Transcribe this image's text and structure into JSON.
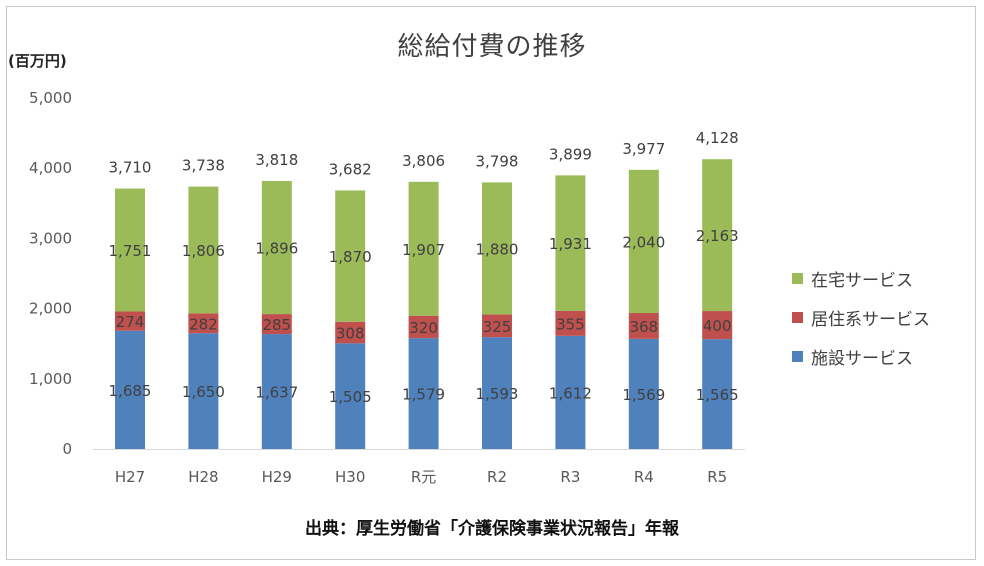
{
  "chart_data": {
    "type": "bar",
    "stacked": true,
    "title": "総給付費の推移",
    "ylabel": "(百万円)",
    "source": "出典：厚生労働省「介護保険事業状況報告」年報",
    "categories": [
      "H27",
      "H28",
      "H29",
      "H30",
      "R元",
      "R2",
      "R3",
      "R4",
      "R5"
    ],
    "yticks": [
      "0",
      "1,000",
      "2,000",
      "3,000",
      "4,000",
      "5,000"
    ],
    "ylim": [
      0,
      5000
    ],
    "grid": false,
    "legend_position": "right",
    "series": [
      {
        "name": "施設サービス",
        "color": "#4F81BD",
        "values": [
          1685,
          1650,
          1637,
          1505,
          1579,
          1593,
          1612,
          1569,
          1565
        ],
        "labels": [
          "1,685",
          "1,650",
          "1,637",
          "1,505",
          "1,579",
          "1,593",
          "1,612",
          "1,569",
          "1,565"
        ]
      },
      {
        "name": "居住系サービス",
        "color": "#C0504D",
        "values": [
          274,
          282,
          285,
          308,
          320,
          325,
          355,
          368,
          400
        ],
        "labels": [
          "274",
          "282",
          "285",
          "308",
          "320",
          "325",
          "355",
          "368",
          "400"
        ]
      },
      {
        "name": "在宅サービス",
        "color": "#9BBB59",
        "values": [
          1751,
          1806,
          1896,
          1870,
          1907,
          1880,
          1931,
          2040,
          2163
        ],
        "labels": [
          "1,751",
          "1,806",
          "1,896",
          "1,870",
          "1,907",
          "1,880",
          "1,931",
          "2,040",
          "2,163"
        ]
      }
    ],
    "totals": [
      3710,
      3738,
      3818,
      3682,
      3806,
      3798,
      3899,
      3977,
      4128
    ],
    "total_labels": [
      "3,710",
      "3,738",
      "3,818",
      "3,682",
      "3,806",
      "3,798",
      "3,899",
      "3,977",
      "4,128"
    ]
  }
}
